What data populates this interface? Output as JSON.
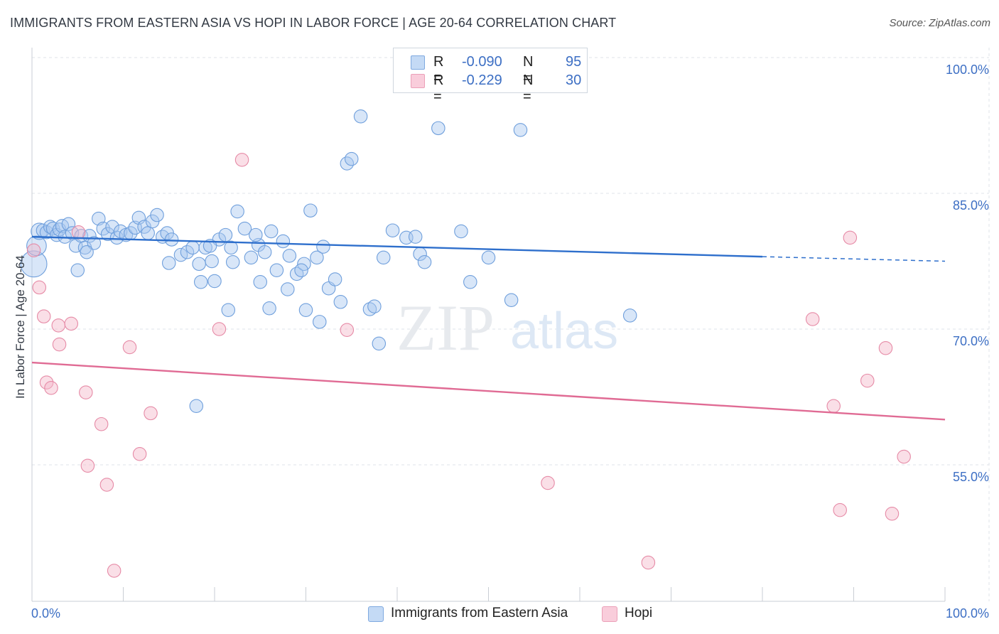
{
  "header": {
    "title": "IMMIGRANTS FROM EASTERN ASIA VS HOPI IN LABOR FORCE | AGE 20-64 CORRELATION CHART",
    "source": "Source: ZipAtlas.com"
  },
  "watermark": {
    "zip": "ZIP",
    "atlas": "atlas"
  },
  "legend": {
    "rows": [
      {
        "r_label": "R =",
        "r_value": "-0.090",
        "n_label": "N =",
        "n_value": "95",
        "color": "#a9c8ef"
      },
      {
        "r_label": "R =",
        "r_value": "-0.229",
        "n_label": "N =",
        "n_value": "30",
        "color": "#f4b8c9"
      }
    ]
  },
  "bottom_legend": [
    {
      "label": "Immigrants from Eastern Asia",
      "color": "#a9c8ef"
    },
    {
      "label": "Hopi",
      "color": "#f4b8c9"
    }
  ],
  "colors": {
    "blue_fill": "#a9c8ef",
    "blue_stroke": "#6f9fdc",
    "blue_line": "#2e6fcc",
    "pink_fill": "#f4b8c9",
    "pink_stroke": "#e68aa6",
    "pink_line": "#e06b94",
    "axis_label": "#3d6fc4",
    "grid": "#dfe3e8"
  },
  "chart_data": {
    "type": "scatter",
    "title": "IMMIGRANTS FROM EASTERN ASIA VS HOPI IN LABOR FORCE | AGE 20-64 CORRELATION CHART",
    "xlabel": "",
    "ylabel": "In Labor Force | Age 20-64",
    "xlim": [
      0,
      100
    ],
    "ylim": [
      40,
      102
    ],
    "x_tick_labels": [
      "0.0%",
      "100.0%"
    ],
    "y_ticks": [
      55,
      70,
      85,
      100
    ],
    "y_tick_labels": [
      "55.0%",
      "70.0%",
      "85.0%",
      "100.0%"
    ],
    "grid": true,
    "legend_position": "top-center",
    "series": [
      {
        "name": "Immigrants from Eastern Asia",
        "r": -0.09,
        "n": 95,
        "trend": {
          "x0": 0,
          "y0": 80.2,
          "x1": 80,
          "y1": 78.0,
          "dash_to_x": 100,
          "dash_to_y": 77.5
        },
        "points": [
          [
            0.2,
            77.2,
            16
          ],
          [
            0.5,
            79.2,
            12
          ],
          [
            0.8,
            80.8,
            10
          ],
          [
            1.2,
            80.9,
            8
          ],
          [
            1.6,
            80.7,
            8
          ],
          [
            2.0,
            81.3,
            8
          ],
          [
            2.3,
            81.1,
            8
          ],
          [
            2.7,
            80.4,
            8
          ],
          [
            3.0,
            81.0,
            8
          ],
          [
            3.3,
            81.4,
            8
          ],
          [
            3.6,
            80.2,
            8
          ],
          [
            4.0,
            81.6,
            8
          ],
          [
            4.4,
            80.6,
            8
          ],
          [
            4.8,
            79.2,
            8
          ],
          [
            5.4,
            80.3,
            8
          ],
          [
            5.8,
            79.0,
            8
          ],
          [
            6.3,
            80.3,
            8
          ],
          [
            6.8,
            79.5,
            8
          ],
          [
            7.3,
            82.2,
            8
          ],
          [
            7.8,
            81.1,
            8
          ],
          [
            8.3,
            80.5,
            8
          ],
          [
            8.8,
            81.3,
            8
          ],
          [
            9.3,
            80.1,
            8
          ],
          [
            9.7,
            80.8,
            8
          ],
          [
            10.3,
            80.4,
            8
          ],
          [
            10.8,
            80.6,
            8
          ],
          [
            11.3,
            81.2,
            8
          ],
          [
            11.7,
            82.3,
            8
          ],
          [
            12.3,
            81.3,
            8
          ],
          [
            12.7,
            80.6,
            8
          ],
          [
            13.2,
            81.9,
            8
          ],
          [
            13.7,
            82.6,
            8
          ],
          [
            14.3,
            80.2,
            8
          ],
          [
            14.8,
            80.6,
            8
          ],
          [
            15.3,
            79.9,
            8
          ],
          [
            16.3,
            78.2,
            8
          ],
          [
            17.0,
            78.5,
            8
          ],
          [
            17.6,
            79.0,
            8
          ],
          [
            18.3,
            77.2,
            8
          ],
          [
            19.0,
            79.0,
            8
          ],
          [
            19.7,
            77.5,
            8
          ],
          [
            20.5,
            79.9,
            8
          ],
          [
            21.2,
            80.4,
            8
          ],
          [
            21.8,
            79.0,
            8
          ],
          [
            22.5,
            83.0,
            8
          ],
          [
            23.3,
            81.1,
            8
          ],
          [
            24.0,
            77.9,
            8
          ],
          [
            24.8,
            79.3,
            8
          ],
          [
            25.5,
            78.5,
            8
          ],
          [
            26.2,
            80.8,
            8
          ],
          [
            26.8,
            76.5,
            8
          ],
          [
            27.5,
            79.7,
            8
          ],
          [
            28.2,
            78.1,
            8
          ],
          [
            29.0,
            76.1,
            8
          ],
          [
            29.8,
            77.2,
            8
          ],
          [
            30.5,
            83.1,
            8
          ],
          [
            31.2,
            77.9,
            8
          ],
          [
            31.9,
            79.1,
            8
          ],
          [
            32.5,
            74.5,
            8
          ],
          [
            33.2,
            75.5,
            8
          ],
          [
            33.8,
            73.0,
            8
          ],
          [
            34.5,
            88.3,
            8
          ],
          [
            35.0,
            88.8,
            8
          ],
          [
            36.0,
            93.5,
            8
          ],
          [
            37.0,
            72.2,
            8
          ],
          [
            37.5,
            72.5,
            8
          ],
          [
            38.0,
            68.4,
            8
          ],
          [
            39.5,
            80.9,
            8
          ],
          [
            41.0,
            80.1,
            8
          ],
          [
            42.0,
            80.2,
            8
          ],
          [
            42.5,
            78.3,
            8
          ],
          [
            43.0,
            77.4,
            8
          ],
          [
            44.5,
            92.2,
            8
          ],
          [
            47.0,
            80.8,
            8
          ],
          [
            48.0,
            75.2,
            8
          ],
          [
            50.0,
            77.9,
            8
          ],
          [
            52.5,
            73.2,
            8
          ],
          [
            53.5,
            92.0,
            8
          ],
          [
            65.5,
            71.5,
            8
          ],
          [
            5.0,
            76.5,
            8
          ],
          [
            6.0,
            78.5,
            8
          ],
          [
            15.0,
            77.3,
            8
          ],
          [
            18.5,
            75.2,
            8
          ],
          [
            20.0,
            75.3,
            8
          ],
          [
            21.5,
            72.1,
            8
          ],
          [
            22.0,
            77.4,
            8
          ],
          [
            24.5,
            80.4,
            8
          ],
          [
            25.0,
            75.2,
            8
          ],
          [
            26.0,
            72.3,
            8
          ],
          [
            28.0,
            74.4,
            8
          ],
          [
            29.5,
            76.5,
            8
          ],
          [
            30.0,
            72.1,
            8
          ],
          [
            31.5,
            70.8,
            8
          ],
          [
            18.0,
            61.5,
            8
          ],
          [
            38.5,
            77.9,
            8
          ],
          [
            19.5,
            79.2,
            8
          ]
        ]
      },
      {
        "name": "Hopi",
        "r": -0.229,
        "n": 30,
        "trend": {
          "x0": 0,
          "y0": 66.3,
          "x1": 100,
          "y1": 60.0
        },
        "points": [
          [
            0.2,
            78.7,
            8
          ],
          [
            0.8,
            74.6,
            8
          ],
          [
            1.3,
            71.4,
            8
          ],
          [
            1.6,
            64.1,
            8
          ],
          [
            2.1,
            63.5,
            8
          ],
          [
            2.9,
            70.4,
            8
          ],
          [
            3.0,
            68.3,
            8
          ],
          [
            4.3,
            70.6,
            8
          ],
          [
            5.1,
            80.7,
            8
          ],
          [
            5.9,
            63.0,
            8
          ],
          [
            6.1,
            54.9,
            8
          ],
          [
            7.6,
            59.5,
            8
          ],
          [
            8.2,
            52.8,
            8
          ],
          [
            9.0,
            43.3,
            8
          ],
          [
            10.7,
            68.0,
            8
          ],
          [
            11.8,
            56.2,
            8
          ],
          [
            13.0,
            60.7,
            8
          ],
          [
            20.5,
            70.0,
            8
          ],
          [
            23.0,
            88.7,
            8
          ],
          [
            34.5,
            69.9,
            8
          ],
          [
            56.5,
            53.0,
            8
          ],
          [
            67.5,
            44.2,
            8
          ],
          [
            85.5,
            71.1,
            8
          ],
          [
            87.8,
            61.5,
            8
          ],
          [
            88.5,
            50.0,
            8
          ],
          [
            89.6,
            80.1,
            8
          ],
          [
            91.5,
            64.3,
            8
          ],
          [
            93.5,
            67.9,
            8
          ],
          [
            94.2,
            49.6,
            8
          ],
          [
            95.5,
            55.9,
            8
          ]
        ]
      }
    ]
  }
}
